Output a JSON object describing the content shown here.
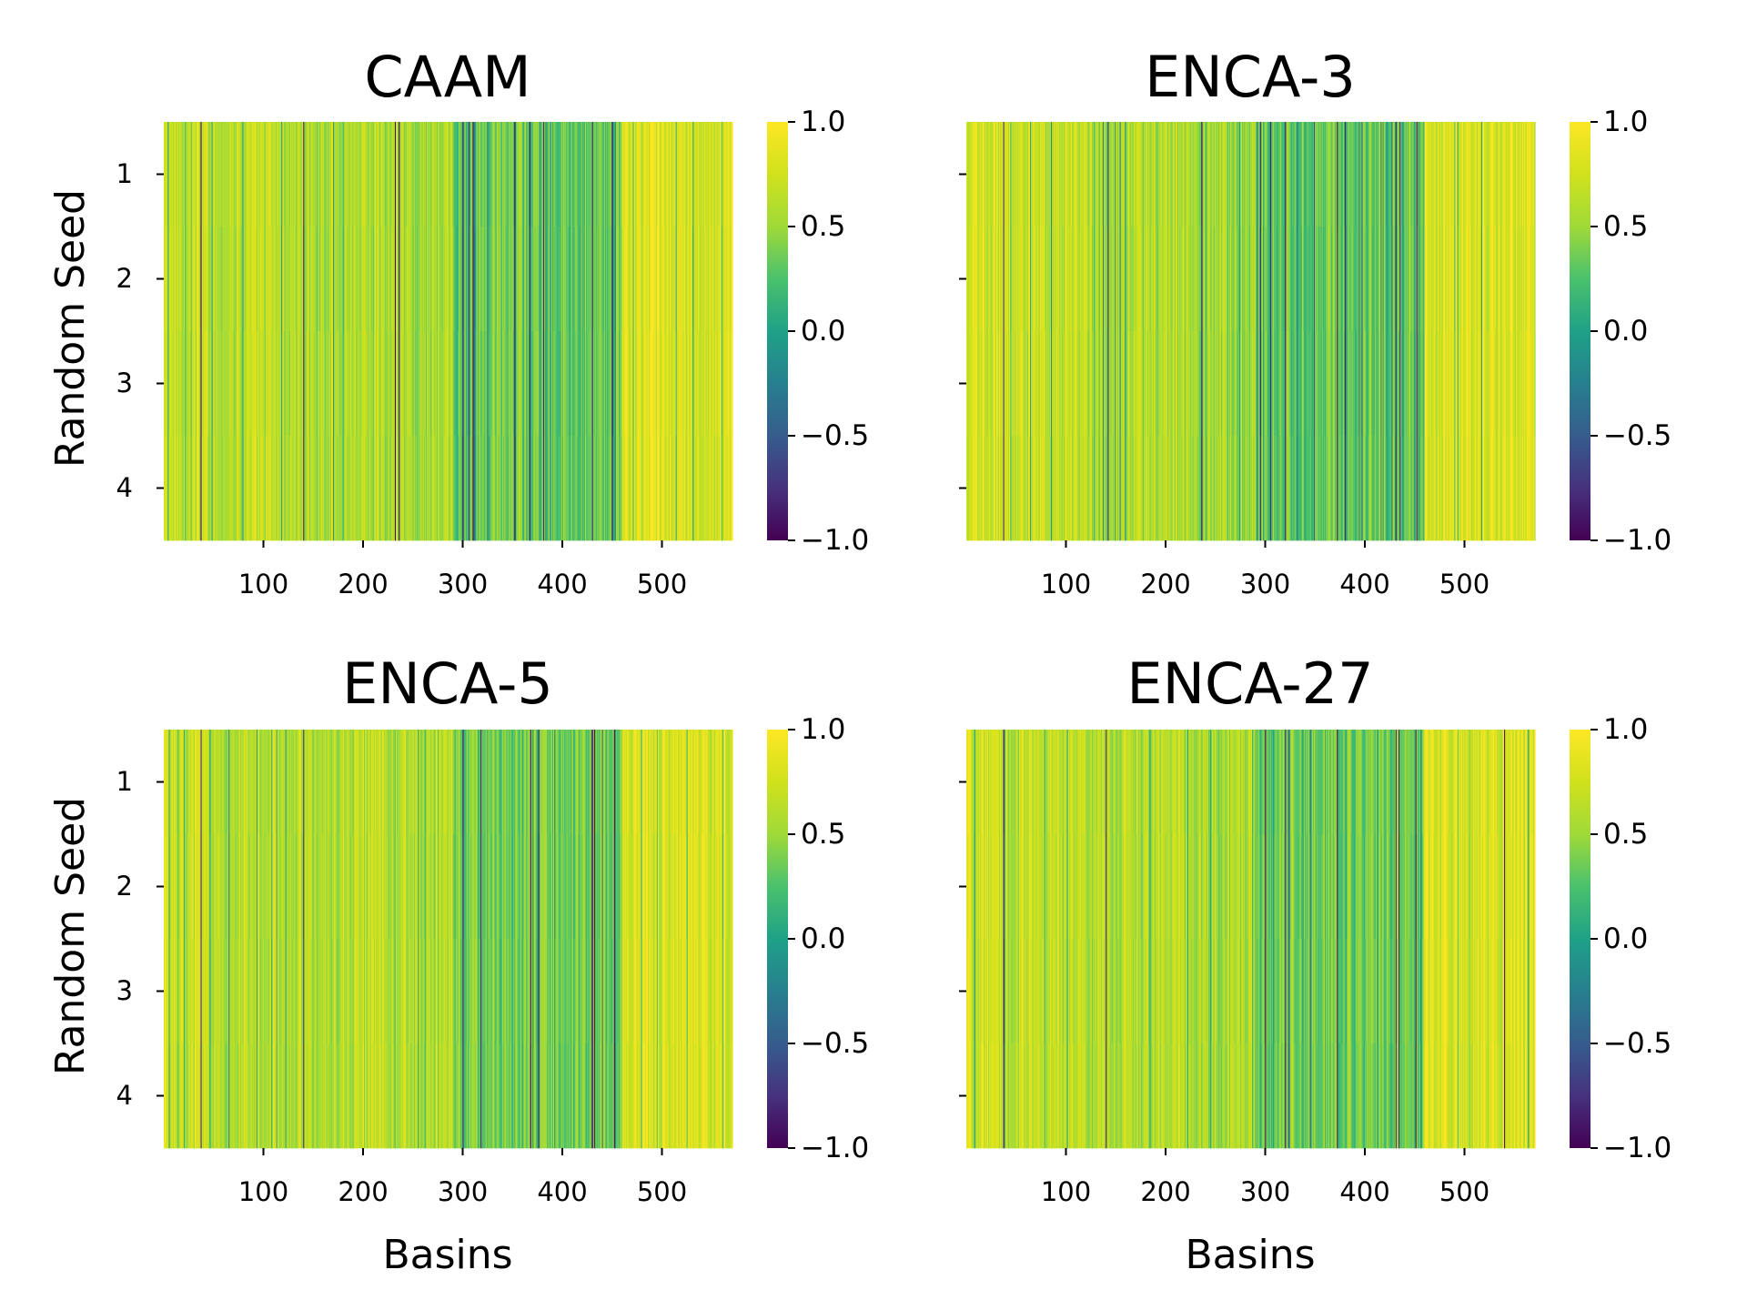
{
  "chart_data": [
    {
      "type": "heatmap",
      "title": "CAAM",
      "xlabel": "",
      "ylabel": "Random Seed",
      "x_ticks": [
        100,
        200,
        300,
        400,
        500
      ],
      "x_range": [
        0,
        571
      ],
      "y_ticks": [
        "1",
        "2",
        "3",
        "4"
      ],
      "rows": 4,
      "columns": 571,
      "colormap": "viridis",
      "colorbar": {
        "min": -1.0,
        "max": 1.0,
        "ticks": [
          "1.0",
          "0.5",
          "0.0",
          "−0.5",
          "−1.0"
        ]
      },
      "profile": [
        {
          "from": 0,
          "to": 40,
          "value": 0.7
        },
        {
          "from": 40,
          "to": 120,
          "value": 0.65
        },
        {
          "from": 120,
          "to": 220,
          "value": 0.62
        },
        {
          "from": 220,
          "to": 290,
          "value": 0.55
        },
        {
          "from": 290,
          "to": 460,
          "value": 0.35
        },
        {
          "from": 460,
          "to": 571,
          "value": 0.78
        }
      ],
      "dark_lines": [
        37,
        140,
        232,
        236,
        300,
        306,
        310,
        352,
        367,
        381,
        430,
        450
      ]
    },
    {
      "type": "heatmap",
      "title": "ENCA-3",
      "xlabel": "",
      "ylabel": "",
      "x_ticks": [
        100,
        200,
        300,
        400,
        500
      ],
      "x_range": [
        0,
        571
      ],
      "y_ticks": [
        "1",
        "2",
        "3",
        "4"
      ],
      "rows": 4,
      "columns": 571,
      "colormap": "viridis",
      "colorbar": {
        "min": -1.0,
        "max": 1.0,
        "ticks": [
          "1.0",
          "0.5",
          "0.0",
          "−0.5",
          "−1.0"
        ]
      },
      "profile": [
        {
          "from": 0,
          "to": 40,
          "value": 0.75
        },
        {
          "from": 40,
          "to": 120,
          "value": 0.68
        },
        {
          "from": 120,
          "to": 220,
          "value": 0.6
        },
        {
          "from": 220,
          "to": 290,
          "value": 0.55
        },
        {
          "from": 290,
          "to": 460,
          "value": 0.35
        },
        {
          "from": 460,
          "to": 571,
          "value": 0.8
        }
      ],
      "dark_lines": [
        37,
        142,
        236,
        295,
        305,
        320,
        372,
        380,
        431,
        435,
        452
      ]
    },
    {
      "type": "heatmap",
      "title": "ENCA-5",
      "xlabel": "Basins",
      "ylabel": "Random Seed",
      "x_ticks": [
        100,
        200,
        300,
        400,
        500
      ],
      "x_range": [
        0,
        571
      ],
      "y_ticks": [
        "1",
        "2",
        "3",
        "4"
      ],
      "rows": 4,
      "columns": 571,
      "colormap": "viridis",
      "colorbar": {
        "min": -1.0,
        "max": 1.0,
        "ticks": [
          "1.0",
          "0.5",
          "0.0",
          "−0.5",
          "−1.0"
        ]
      },
      "profile": [
        {
          "from": 0,
          "to": 40,
          "value": 0.72
        },
        {
          "from": 40,
          "to": 120,
          "value": 0.66
        },
        {
          "from": 120,
          "to": 220,
          "value": 0.63
        },
        {
          "from": 220,
          "to": 290,
          "value": 0.6
        },
        {
          "from": 290,
          "to": 460,
          "value": 0.38
        },
        {
          "from": 460,
          "to": 571,
          "value": 0.8
        }
      ],
      "dark_lines": [
        37,
        140,
        300,
        318,
        368,
        376,
        430,
        432,
        452
      ]
    },
    {
      "type": "heatmap",
      "title": "ENCA-27",
      "xlabel": "Basins",
      "ylabel": "",
      "x_ticks": [
        100,
        200,
        300,
        400,
        500
      ],
      "x_range": [
        0,
        571
      ],
      "y_ticks": [
        "1",
        "2",
        "3",
        "4"
      ],
      "rows": 4,
      "columns": 571,
      "colormap": "viridis",
      "colorbar": {
        "min": -1.0,
        "max": 1.0,
        "ticks": [
          "1.0",
          "0.5",
          "0.0",
          "−0.5",
          "−1.0"
        ]
      },
      "profile": [
        {
          "from": 0,
          "to": 40,
          "value": 0.74
        },
        {
          "from": 40,
          "to": 120,
          "value": 0.67
        },
        {
          "from": 120,
          "to": 220,
          "value": 0.62
        },
        {
          "from": 220,
          "to": 290,
          "value": 0.58
        },
        {
          "from": 290,
          "to": 460,
          "value": 0.36
        },
        {
          "from": 460,
          "to": 571,
          "value": 0.8
        }
      ],
      "dark_lines": [
        37,
        140,
        300,
        320,
        372,
        431,
        434,
        451,
        540
      ]
    }
  ]
}
